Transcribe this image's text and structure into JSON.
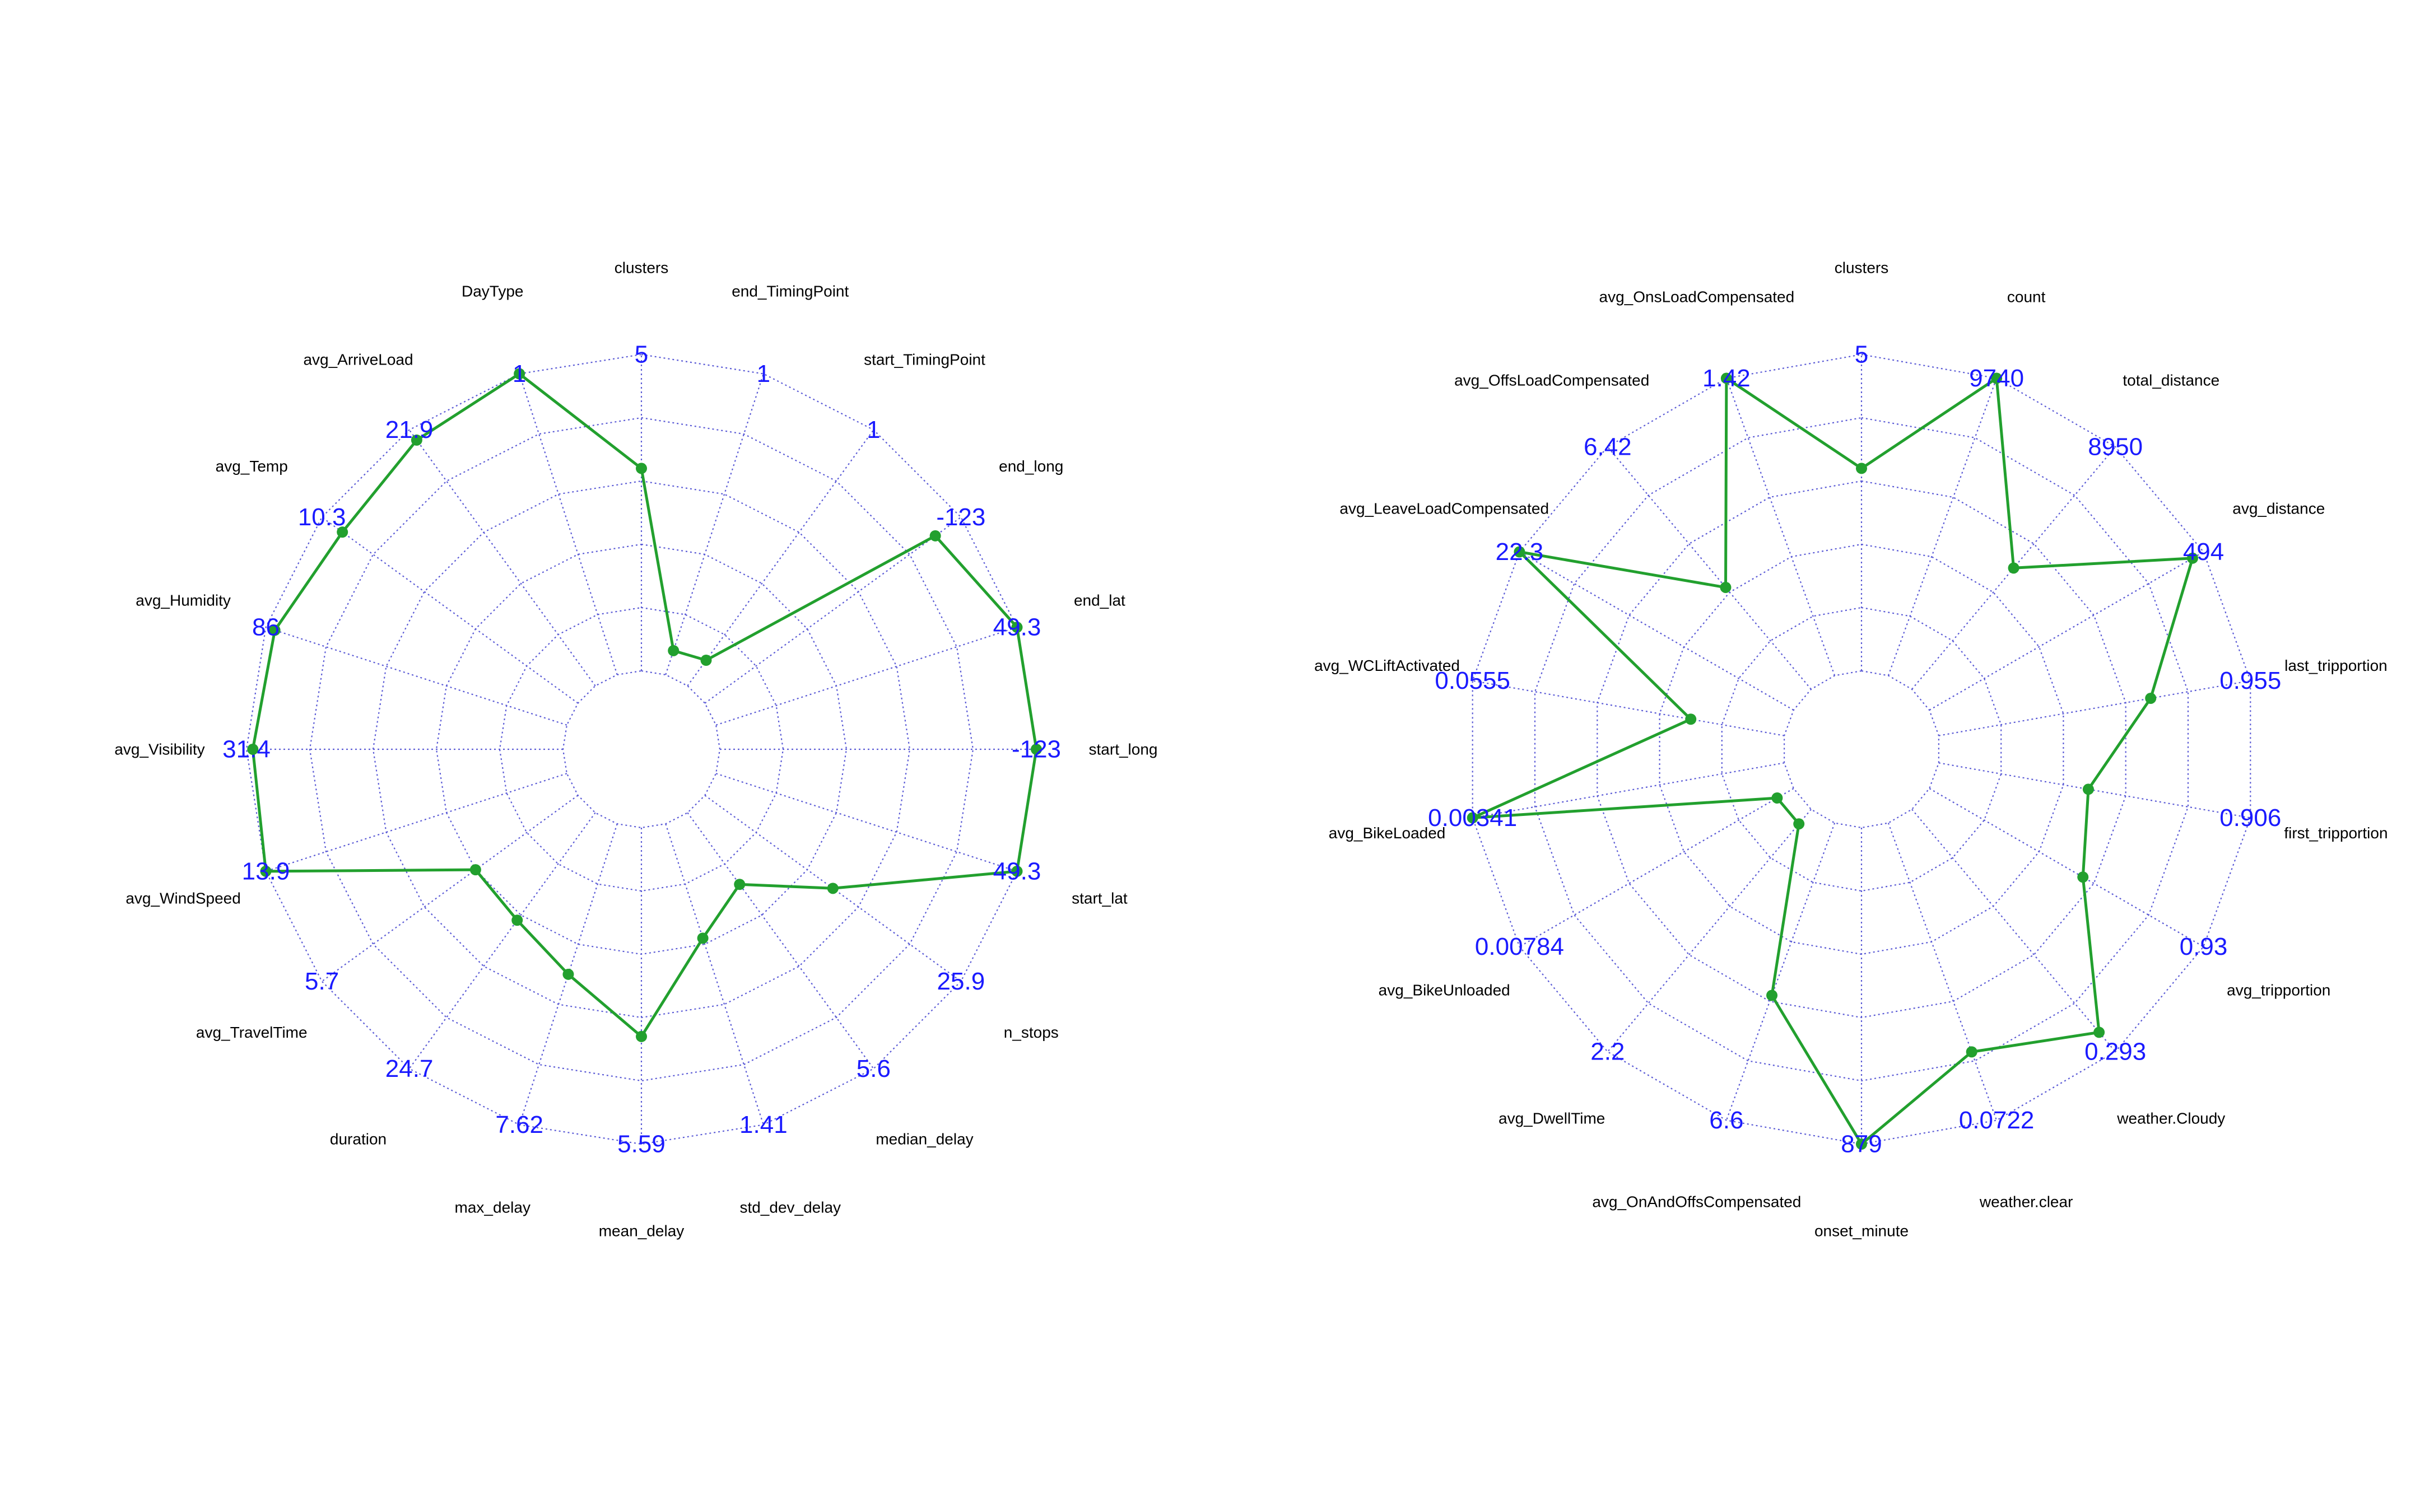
{
  "colors": {
    "grid": "#5b5bd6",
    "series": "#22a02e",
    "axis_max_label": "#1a1aff",
    "axis_name": "#000000",
    "background": "#ffffff"
  },
  "chart_data": [
    {
      "type": "radar",
      "grid": true,
      "axes": [
        {
          "name": "clusters",
          "max_label": "5",
          "value": 0.64
        },
        {
          "name": "end_TimingPoint",
          "max_label": "1",
          "value": 0.08
        },
        {
          "name": "start_TimingPoint",
          "max_label": "1",
          "value": 0.1
        },
        {
          "name": "end_long",
          "max_label": "-123",
          "value": 0.9
        },
        {
          "name": "end_lat",
          "max_label": "49.3",
          "value": 1.0
        },
        {
          "name": "start_long",
          "max_label": "-123",
          "value": 1.0
        },
        {
          "name": "start_lat",
          "max_label": "49.3",
          "value": 1.0
        },
        {
          "name": "n_stops",
          "max_label": "25.9",
          "value": 0.5
        },
        {
          "name": "median_delay",
          "max_label": "5.6",
          "value": 0.28
        },
        {
          "name": "std_dev_delay",
          "max_label": "1.41",
          "value": 0.38
        },
        {
          "name": "mean_delay",
          "max_label": "5.59",
          "value": 0.66
        },
        {
          "name": "max_delay",
          "max_label": "7.62",
          "value": 0.5
        },
        {
          "name": "duration",
          "max_label": "24.7",
          "value": 0.42
        },
        {
          "name": "avg_TravelTime",
          "max_label": "5.7",
          "value": 0.4
        },
        {
          "name": "avg_WindSpeed",
          "max_label": "13.9",
          "value": 1.0
        },
        {
          "name": "avg_Visibility",
          "max_label": "31.4",
          "value": 0.98
        },
        {
          "name": "avg_Humidity",
          "max_label": "86",
          "value": 0.97
        },
        {
          "name": "avg_Temp",
          "max_label": "10.3",
          "value": 0.92
        },
        {
          "name": "avg_ArriveLoad",
          "max_label": "21.9",
          "value": 0.96
        },
        {
          "name": "DayType",
          "max_label": "1",
          "value": 1.0
        }
      ]
    },
    {
      "type": "radar",
      "grid": true,
      "axes": [
        {
          "name": "clusters",
          "max_label": "5",
          "value": 0.64
        },
        {
          "name": "count",
          "max_label": "9740",
          "value": 1.0
        },
        {
          "name": "total_distance",
          "max_label": "8950",
          "value": 0.5
        },
        {
          "name": "avg_distance",
          "max_label": "494",
          "value": 0.96
        },
        {
          "name": "last_tripportion",
          "max_label": "0.955",
          "value": 0.68
        },
        {
          "name": "first_tripportion",
          "max_label": "0.906",
          "value": 0.48
        },
        {
          "name": "avg_tripportion",
          "max_label": "0.93",
          "value": 0.56
        },
        {
          "name": "weather.Cloudy",
          "max_label": "0.293",
          "value": 0.92
        },
        {
          "name": "weather.clear",
          "max_label": "0.0722",
          "value": 0.77
        },
        {
          "name": "onset_minute",
          "max_label": "879",
          "value": 1.0
        },
        {
          "name": "avg_OnAndOffsCompensated",
          "max_label": "6.6",
          "value": 0.58
        },
        {
          "name": "avg_DwellTime",
          "max_label": "2.2",
          "value": 0.06
        },
        {
          "name": "avg_BikeUnloaded",
          "max_label": "0.00784",
          "value": 0.06
        },
        {
          "name": "avg_BikeLoaded",
          "max_label": "0.00341",
          "value": 1.0
        },
        {
          "name": "avg_WCLiftActivated",
          "max_label": "0.0555",
          "value": 0.3
        },
        {
          "name": "avg_LeaveLoadCompensated",
          "max_label": "22.3",
          "value": 1.0
        },
        {
          "name": "avg_OffsLoadCompensated",
          "max_label": "6.42",
          "value": 0.42
        },
        {
          "name": "avg_OnsLoadCompensated",
          "max_label": "1.42",
          "value": 1.0
        }
      ]
    }
  ]
}
